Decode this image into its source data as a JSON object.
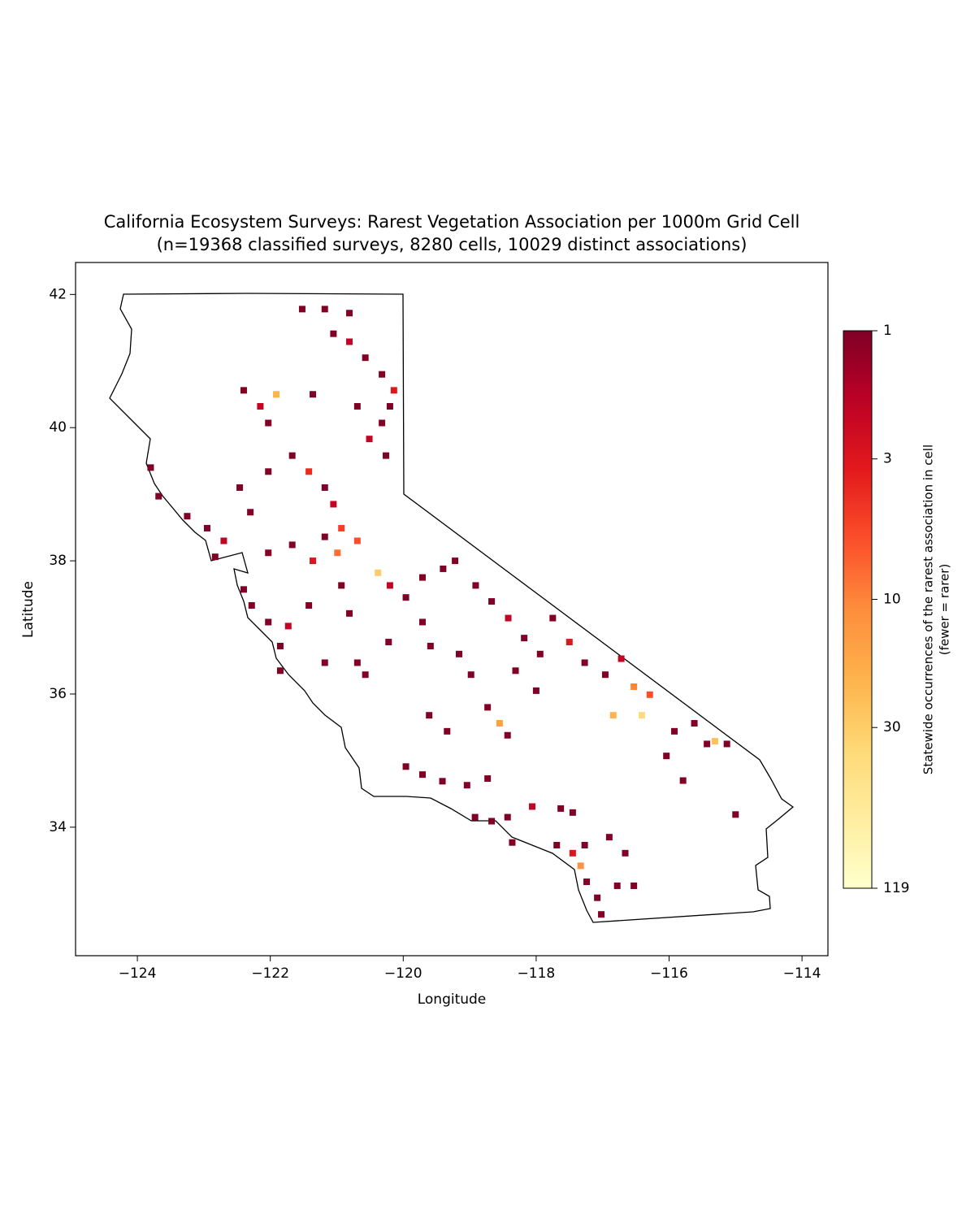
{
  "chart_data": {
    "type": "scatter",
    "title": "California Ecosystem Surveys: Rarest Vegetation Association per 1000m Grid Cell",
    "subtitle": "(n=19368 classified surveys, 8280 cells, 10029 distinct associations)",
    "xlabel": "Longitude",
    "ylabel": "Latitude",
    "xlim": [
      -124.93,
      -113.61
    ],
    "ylim": [
      32.07,
      42.48
    ],
    "xticks": [
      {
        "value": -124,
        "label": "−124"
      },
      {
        "value": -122,
        "label": "−122"
      },
      {
        "value": -120,
        "label": "−120"
      },
      {
        "value": -118,
        "label": "−118"
      },
      {
        "value": -116,
        "label": "−116"
      },
      {
        "value": -114,
        "label": "−114"
      }
    ],
    "yticks": [
      34,
      36,
      38,
      40,
      42
    ],
    "colormap": "YlOrRd_r",
    "color_log_scale": true,
    "clim": [
      1,
      119
    ],
    "cticks": [
      1,
      3,
      10,
      30,
      119
    ],
    "colorbar_label": "Statewide occurrences of the rarest association in cell",
    "colorbar_label_2": "(fewer = rarer)",
    "x": [
      -121.52,
      -121.18,
      -120.81,
      -121.05,
      -120.81,
      -120.57,
      -120.32,
      -120.14,
      -120.2,
      -120.32,
      -120.26,
      -120.69,
      -120.51,
      -121.36,
      -122.4,
      -122.15,
      -121.91,
      -122.03,
      -121.67,
      -121.42,
      -121.18,
      -121.05,
      -120.93,
      -122.03,
      -123.8,
      -123.68,
      -123.25,
      -122.95,
      -122.7,
      -122.83,
      -122.46,
      -122.3,
      -122.4,
      -122.28,
      -122.03,
      -121.73,
      -121.85,
      -121.85,
      -122.03,
      -121.67,
      -121.36,
      -121.18,
      -120.99,
      -120.69,
      -120.38,
      -120.2,
      -119.96,
      -121.42,
      -120.93,
      -120.81,
      -119.71,
      -119.4,
      -119.22,
      -118.91,
      -118.67,
      -118.42,
      -118.18,
      -117.94,
      -117.75,
      -117.5,
      -117.27,
      -116.96,
      -116.72,
      -116.53,
      -116.29,
      -118.0,
      -118.31,
      -116.41,
      -116.84,
      -119.71,
      -119.59,
      -119.16,
      -118.98,
      -120.69,
      -120.57,
      -121.18,
      -120.22,
      -118.73,
      -118.55,
      -118.43,
      -119.96,
      -119.71,
      -119.41,
      -119.04,
      -118.73,
      -119.34,
      -119.61,
      -115.92,
      -115.62,
      -115.43,
      -115.13,
      -115.31,
      -116.04,
      -115.79,
      -115.0,
      -118.92,
      -118.67,
      -118.43,
      -118.06,
      -117.63,
      -117.45,
      -117.69,
      -117.45,
      -117.27,
      -116.9,
      -116.66,
      -117.33,
      -117.24,
      -117.08,
      -117.02,
      -116.78,
      -116.53,
      -118.36
    ],
    "y": [
      41.78,
      41.78,
      41.72,
      41.41,
      41.29,
      41.05,
      40.8,
      40.56,
      40.32,
      40.07,
      39.58,
      40.32,
      39.83,
      40.5,
      40.56,
      40.32,
      40.5,
      40.07,
      39.58,
      39.34,
      39.1,
      38.85,
      38.49,
      39.34,
      39.4,
      38.97,
      38.67,
      38.49,
      38.3,
      38.06,
      39.1,
      38.73,
      37.57,
      37.33,
      37.08,
      37.02,
      36.72,
      36.35,
      38.12,
      38.24,
      38.0,
      38.36,
      38.12,
      38.3,
      37.82,
      37.63,
      37.45,
      37.33,
      37.63,
      37.21,
      37.75,
      37.88,
      38.0,
      37.63,
      37.39,
      37.14,
      36.84,
      36.6,
      37.14,
      36.78,
      36.47,
      36.29,
      36.53,
      36.11,
      35.99,
      36.05,
      36.35,
      35.68,
      35.68,
      37.08,
      36.72,
      36.6,
      36.29,
      36.47,
      36.29,
      36.47,
      36.78,
      35.8,
      35.56,
      35.38,
      34.91,
      34.79,
      34.69,
      34.63,
      34.73,
      35.44,
      35.68,
      35.44,
      35.56,
      35.25,
      35.25,
      35.29,
      35.07,
      34.7,
      34.19,
      34.15,
      34.09,
      34.15,
      34.31,
      34.28,
      34.22,
      33.73,
      33.61,
      33.73,
      33.85,
      33.61,
      33.42,
      33.18,
      32.94,
      32.69,
      33.12,
      33.12,
      33.77
    ],
    "values": [
      1,
      1,
      1,
      1,
      2,
      1,
      1,
      3,
      1,
      1,
      1,
      1,
      2,
      1,
      1,
      2,
      20,
      1,
      1,
      4,
      1,
      2,
      5,
      1,
      1,
      1,
      1,
      1,
      2,
      1,
      1,
      1,
      1,
      1,
      1,
      2,
      1,
      1,
      1,
      1,
      3,
      1,
      8,
      6,
      30,
      2,
      1,
      1,
      1,
      1,
      1,
      1,
      1,
      1,
      1,
      2,
      1,
      1,
      1,
      3,
      1,
      1,
      2,
      10,
      6,
      1,
      1,
      40,
      20,
      1,
      1,
      1,
      1,
      1,
      1,
      1,
      1,
      1,
      15,
      1,
      1,
      1,
      1,
      1,
      1,
      1,
      1,
      1,
      1,
      1,
      1,
      25,
      1,
      1,
      1,
      1,
      1,
      1,
      2,
      1,
      1,
      1,
      3,
      1,
      1,
      1,
      12,
      1,
      1,
      1,
      1,
      1,
      1
    ]
  }
}
